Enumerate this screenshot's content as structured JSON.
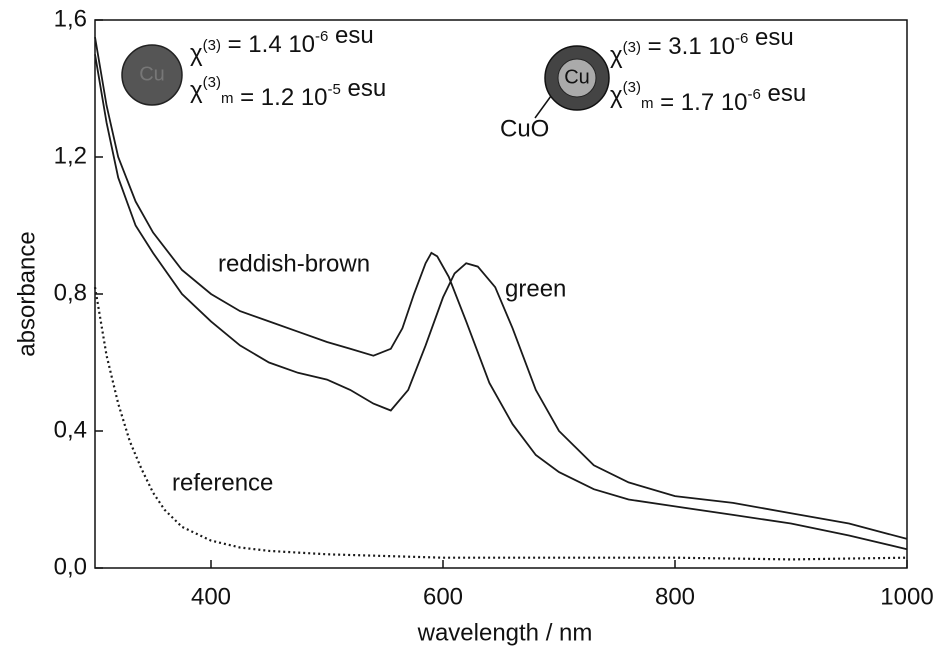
{
  "chart_data": {
    "type": "line",
    "xlabel": "wavelength / nm",
    "ylabel": "absorbance",
    "xlim": [
      300,
      1000
    ],
    "xticks": [
      400,
      600,
      800,
      1000
    ],
    "ylim": [
      0,
      1.6
    ],
    "yticks": [
      {
        "value": 0,
        "label": "0,0"
      },
      {
        "value": 0.4,
        "label": "0,4"
      },
      {
        "value": 0.8,
        "label": "0,8"
      },
      {
        "value": 1.2,
        "label": "1,2"
      },
      {
        "value": 1.6,
        "label": "1,6"
      }
    ],
    "series": [
      {
        "name": "reddish-brown",
        "color": "#1a1a1a",
        "dash": "solid",
        "x": [
          300,
          310,
          320,
          335,
          350,
          375,
          400,
          425,
          450,
          475,
          500,
          520,
          540,
          555,
          565,
          575,
          585,
          590,
          595,
          605,
          620,
          640,
          660,
          680,
          700,
          730,
          760,
          800,
          850,
          900,
          950,
          1000
        ],
        "values": [
          1.55,
          1.35,
          1.2,
          1.07,
          0.98,
          0.87,
          0.8,
          0.75,
          0.72,
          0.69,
          0.66,
          0.64,
          0.62,
          0.64,
          0.7,
          0.8,
          0.89,
          0.92,
          0.91,
          0.85,
          0.72,
          0.54,
          0.42,
          0.33,
          0.28,
          0.23,
          0.2,
          0.18,
          0.155,
          0.13,
          0.095,
          0.055
        ]
      },
      {
        "name": "green",
        "color": "#1a1a1a",
        "dash": "solid",
        "x": [
          300,
          310,
          320,
          335,
          350,
          375,
          400,
          425,
          450,
          475,
          500,
          520,
          540,
          555,
          570,
          585,
          600,
          610,
          620,
          630,
          645,
          660,
          680,
          700,
          730,
          760,
          800,
          850,
          900,
          950,
          1000
        ],
        "values": [
          1.5,
          1.3,
          1.14,
          1.0,
          0.92,
          0.8,
          0.72,
          0.65,
          0.6,
          0.57,
          0.55,
          0.52,
          0.48,
          0.46,
          0.52,
          0.65,
          0.79,
          0.86,
          0.89,
          0.88,
          0.82,
          0.7,
          0.52,
          0.4,
          0.3,
          0.25,
          0.21,
          0.19,
          0.16,
          0.13,
          0.085
        ]
      },
      {
        "name": "reference",
        "color": "#1a1a1a",
        "dash": "dotted",
        "x": [
          300,
          305,
          310,
          320,
          330,
          340,
          350,
          360,
          375,
          400,
          425,
          450,
          500,
          550,
          600,
          700,
          800,
          900,
          1000
        ],
        "values": [
          0.82,
          0.72,
          0.62,
          0.48,
          0.37,
          0.29,
          0.22,
          0.17,
          0.12,
          0.08,
          0.06,
          0.05,
          0.04,
          0.035,
          0.03,
          0.03,
          0.03,
          0.025,
          0.03
        ]
      }
    ],
    "annotations": [
      {
        "particle": "Cu",
        "lines": [
          [
            {
              "t": "χ"
            },
            {
              "sup": "(3)"
            },
            {
              "t": "  = 1.4 10"
            },
            {
              "sup": "-6"
            },
            {
              "t": " esu"
            }
          ],
          [
            {
              "t": "χ"
            },
            {
              "sup": "(3)"
            },
            {
              "sub": "m"
            },
            {
              "t": " = 1.2 10"
            },
            {
              "sup": "-5"
            },
            {
              "t": " esu"
            }
          ]
        ]
      },
      {
        "particle": "Cu",
        "shell": "CuO",
        "lines": [
          [
            {
              "t": "χ"
            },
            {
              "sup": "(3)"
            },
            {
              "t": "  = 3.1 10"
            },
            {
              "sup": "-6"
            },
            {
              "t": " esu"
            }
          ],
          [
            {
              "t": "χ"
            },
            {
              "sup": "(3)"
            },
            {
              "sub": "m"
            },
            {
              "t": " = 1.7 10"
            },
            {
              "sup": "-6"
            },
            {
              "t": " esu"
            }
          ]
        ]
      }
    ]
  }
}
